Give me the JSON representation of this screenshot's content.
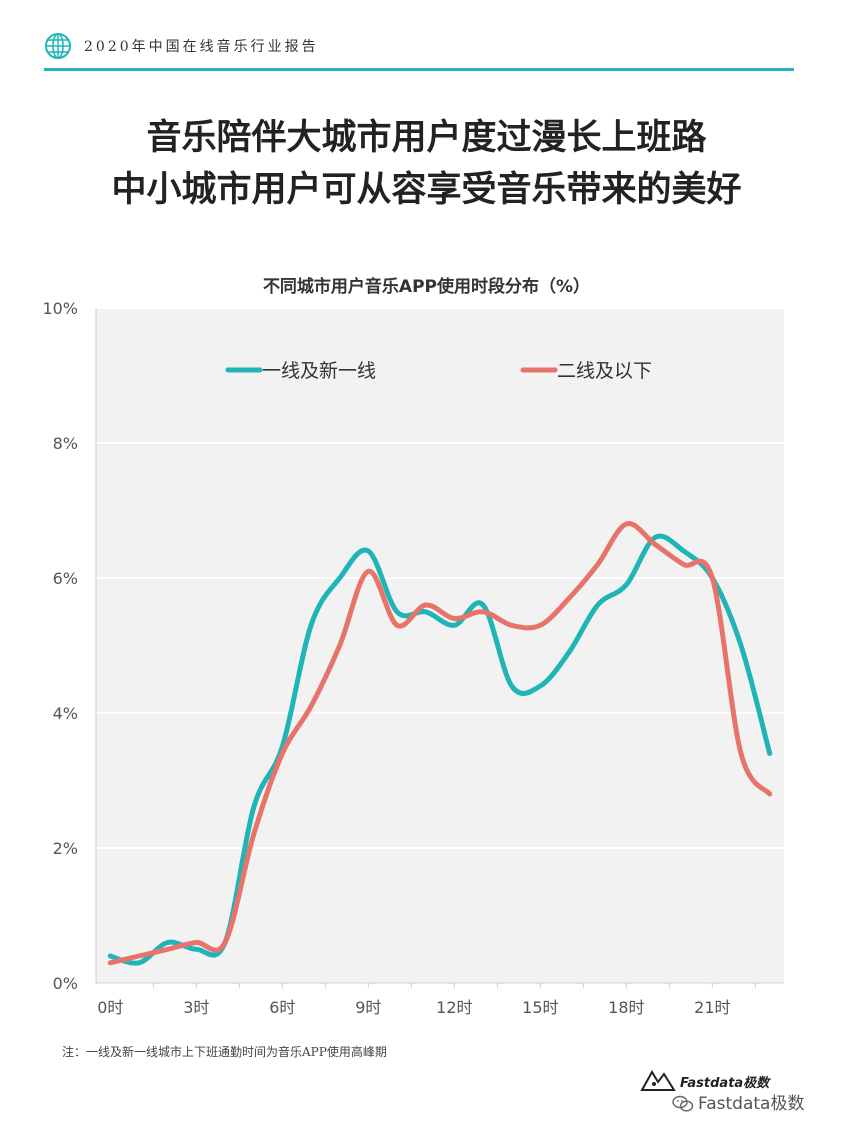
{
  "header": {
    "report_title": "2020年中国在线音乐行业报告",
    "globe_icon": "globe-icon",
    "accent_color": "#1fb5b8"
  },
  "headline": {
    "line1": "音乐陪伴大城市用户度过漫长上班路",
    "line2": "中小城市用户可从容享受音乐带来的美好"
  },
  "chart_data": {
    "type": "line",
    "title": "不同城市用户音乐APP使用时段分布（%）",
    "xlabel": "",
    "ylabel": "",
    "x": [
      0,
      1,
      2,
      3,
      4,
      5,
      6,
      7,
      8,
      9,
      10,
      11,
      12,
      13,
      14,
      15,
      16,
      17,
      18,
      19,
      20,
      21,
      22,
      23
    ],
    "x_tick_values": [
      0,
      3,
      6,
      9,
      12,
      15,
      18,
      21
    ],
    "x_tick_labels": [
      "0时",
      "3时",
      "6时",
      "9时",
      "12时",
      "15时",
      "18时",
      "21时"
    ],
    "y_tick_values": [
      0,
      2,
      4,
      6,
      8,
      10
    ],
    "y_tick_labels": [
      "0%",
      "2%",
      "4%",
      "6%",
      "8%",
      "10%"
    ],
    "ylim": [
      0,
      10
    ],
    "xlim": [
      -0.5,
      23.5
    ],
    "grid": true,
    "legend_position": "top",
    "series": [
      {
        "name": "一线及新一线",
        "color": "#1fb5b8",
        "values": [
          0.4,
          0.3,
          0.6,
          0.5,
          0.6,
          2.6,
          3.5,
          5.3,
          6.0,
          6.4,
          5.5,
          5.5,
          5.3,
          5.6,
          4.4,
          4.4,
          4.9,
          5.6,
          5.9,
          6.6,
          6.4,
          6.0,
          5.0,
          3.4
        ]
      },
      {
        "name": "二线及以下",
        "color": "#e8736b",
        "values": [
          0.3,
          0.4,
          0.5,
          0.6,
          0.6,
          2.2,
          3.4,
          4.1,
          5.0,
          6.1,
          5.3,
          5.6,
          5.4,
          5.5,
          5.3,
          5.3,
          5.7,
          6.2,
          6.8,
          6.5,
          6.2,
          6.0,
          3.4,
          2.8
        ]
      }
    ]
  },
  "note": "注：一线及新一线城市上下班通勤时间为音乐APP使用高峰期",
  "brand": {
    "logo_text": "Fastdata极数",
    "watermark": "Fastdata极数",
    "watermark_icon": "wechat-icon"
  }
}
